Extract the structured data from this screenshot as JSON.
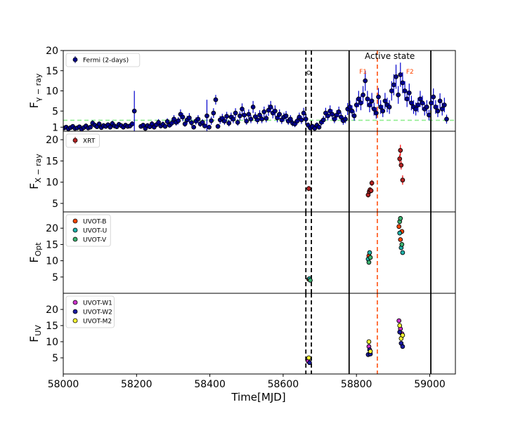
{
  "chart_data": {
    "type": "scatter",
    "shared_x": {
      "label": "Time[MJD]",
      "range": [
        58000,
        59070
      ],
      "ticks": [
        58000,
        58200,
        58400,
        58600,
        58800,
        59000
      ]
    },
    "markers": {
      "dashed_black": [
        58662,
        58677
      ],
      "solid_black": [
        58780,
        59003
      ],
      "dashed_red": [
        58857
      ]
    },
    "annotations": {
      "active_state": "Active state",
      "f1": "F1",
      "f2": "F2"
    },
    "colors": {
      "fermi": "#00008b",
      "fermi_err": "#0000cd",
      "xrt": "#b22222",
      "xrt_err": "#ff0000",
      "uvot_b": "#ff4500",
      "uvot_u": "#20b2aa",
      "uvot_v": "#3cb371",
      "uvot_w1": "#cc33cc",
      "uvot_w2": "#1a1aa0",
      "uvot_m2": "#ffff33",
      "threshold": "#90ee90",
      "flare_line": "#ff4500"
    },
    "panels": [
      {
        "id": "gamma",
        "ylabel_main": "F",
        "ylabel_sub": "γ − ray",
        "ylim": [
          0,
          20
        ],
        "yticks": [
          1,
          5,
          10,
          15,
          20
        ],
        "threshold": 2.7,
        "series": [
          {
            "name": "Fermi (2-days)",
            "color_key": "fermi",
            "style": "errorbar",
            "x": [
              58002,
              58008,
              58014,
              58020,
              58026,
              58032,
              58038,
              58044,
              58050,
              58056,
              58062,
              58068,
              58074,
              58080,
              58086,
              58092,
              58098,
              58104,
              58110,
              58116,
              58122,
              58128,
              58134,
              58140,
              58146,
              58152,
              58158,
              58164,
              58170,
              58176,
              58182,
              58188,
              58194,
              58212,
              58218,
              58224,
              58230,
              58236,
              58242,
              58248,
              58254,
              58260,
              58266,
              58272,
              58278,
              58284,
              58290,
              58296,
              58302,
              58308,
              58314,
              58320,
              58326,
              58332,
              58338,
              58344,
              58350,
              58356,
              58362,
              58368,
              58374,
              58380,
              58386,
              58392,
              58398,
              58404,
              58410,
              58416,
              58422,
              58428,
              58434,
              58440,
              58446,
              58452,
              58458,
              58464,
              58470,
              58476,
              58482,
              58488,
              58494,
              58500,
              58506,
              58512,
              58518,
              58524,
              58530,
              58536,
              58542,
              58548,
              58554,
              58560,
              58566,
              58572,
              58578,
              58584,
              58590,
              58596,
              58602,
              58608,
              58614,
              58620,
              58626,
              58632,
              58638,
              58644,
              58650,
              58656,
              58662,
              58668,
              58674,
              58680,
              58686,
              58692,
              58698,
              58704,
              58710,
              58716,
              58722,
              58728,
              58734,
              58740,
              58746,
              58752,
              58758,
              58764,
              58770,
              58776,
              58782,
              58788,
              58794,
              58800,
              58806,
              58812,
              58818,
              58824,
              58830,
              58836,
              58842,
              58848,
              58854,
              58860,
              58866,
              58872,
              58878,
              58884,
              58890,
              58896,
              58902,
              58908,
              58914,
              58920,
              58926,
              58932,
              58938,
              58944,
              58950,
              58956,
              58962,
              58968,
              58974,
              58980,
              58986,
              58992,
              58998,
              59004,
              59010,
              59016,
              59022,
              59028,
              59034,
              59040,
              59046
            ],
            "y": [
              0.8,
              1.0,
              0.6,
              0.9,
              1.2,
              0.7,
              0.8,
              1.1,
              0.5,
              0.9,
              1.3,
              0.8,
              1.0,
              2.0,
              1.5,
              1.1,
              1.8,
              0.9,
              1.4,
              1.2,
              1.6,
              1.0,
              1.9,
              1.3,
              1.1,
              1.7,
              1.4,
              1.0,
              1.5,
              1.2,
              1.3,
              1.8,
              5.0,
              1.2,
              1.5,
              0.7,
              1.4,
              1.1,
              1.8,
              1.0,
              1.6,
              2.2,
              1.3,
              1.7,
              1.2,
              2.4,
              1.5,
              2.0,
              3.0,
              2.2,
              2.6,
              4.2,
              3.5,
              1.8,
              2.8,
              3.3,
              2.1,
              1.0,
              2.5,
              3.0,
              1.8,
              2.2,
              1.3,
              3.8,
              1.0,
              2.6,
              4.5,
              7.8,
              1.2,
              2.8,
              3.2,
              2.5,
              3.7,
              2.0,
              3.5,
              3.0,
              4.5,
              2.2,
              3.8,
              5.5,
              4.0,
              2.5,
              4.2,
              3.0,
              6.0,
              3.6,
              2.8,
              4.0,
              3.0,
              4.8,
              3.2,
              5.2,
              6.0,
              4.5,
              5.0,
              3.3,
              4.2,
              2.8,
              3.5,
              3.8,
              2.5,
              3.0,
              2.0,
              1.8,
              2.5,
              3.5,
              2.8,
              4.5,
              3.0,
              1.5,
              0.8,
              1.2,
              0.7,
              1.5,
              1.0,
              2.2,
              2.8,
              4.5,
              3.8,
              5.0,
              4.2,
              3.0,
              4.0,
              4.8,
              3.5,
              2.6,
              3.0,
              5.5,
              6.0,
              5.0,
              3.8,
              6.5,
              8.0,
              7.0,
              9.0,
              12.5,
              8.0,
              6.5,
              7.5,
              5.5,
              4.5,
              8.5,
              6.0,
              5.0,
              7.5,
              6.5,
              6.0,
              10.0,
              11.5,
              13.5,
              9.0,
              14.0,
              12.0,
              10.0,
              8.0,
              9.5,
              7.0,
              6.0,
              5.5,
              6.5,
              8.0,
              7.0,
              5.5,
              6.0,
              4.0,
              7.0,
              8.5,
              6.0,
              5.0,
              7.5,
              5.5,
              6.5,
              3.0
            ],
            "err": [
              0.5,
              0.5,
              0.4,
              0.5,
              0.5,
              0.4,
              0.5,
              0.5,
              0.4,
              0.5,
              0.6,
              0.5,
              0.5,
              0.7,
              0.6,
              0.5,
              0.6,
              0.5,
              0.6,
              0.5,
              0.6,
              0.5,
              0.7,
              0.6,
              0.5,
              0.6,
              0.6,
              0.5,
              0.6,
              0.5,
              0.6,
              0.7,
              5.0,
              0.5,
              0.6,
              0.5,
              0.6,
              0.5,
              0.7,
              0.5,
              0.6,
              0.8,
              0.6,
              0.7,
              0.5,
              0.8,
              0.6,
              0.8,
              1.0,
              0.8,
              0.9,
              1.2,
              1.0,
              0.7,
              1.0,
              1.2,
              0.8,
              0.5,
              0.9,
              1.0,
              0.7,
              0.8,
              0.6,
              4.0,
              0.6,
              1.0,
              1.2,
              1.2,
              0.6,
              1.0,
              1.1,
              0.9,
              1.1,
              0.8,
              1.1,
              1.0,
              1.2,
              0.8,
              1.1,
              1.4,
              1.2,
              0.9,
              1.2,
              1.0,
              1.5,
              1.1,
              1.0,
              1.2,
              1.0,
              1.3,
              1.0,
              1.4,
              1.5,
              1.3,
              1.4,
              1.1,
              1.2,
              1.0,
              1.1,
              1.2,
              0.9,
              1.0,
              0.8,
              0.8,
              0.9,
              1.1,
              1.0,
              1.3,
              1.0,
              0.7,
              0.5,
              0.6,
              0.5,
              0.7,
              0.6,
              0.8,
              1.0,
              1.3,
              1.1,
              1.4,
              1.2,
              1.0,
              1.2,
              1.3,
              1.1,
              1.0,
              1.0,
              1.5,
              1.6,
              1.4,
              1.2,
              1.7,
              2.0,
              1.8,
              2.2,
              2.5,
              2.0,
              1.8,
              2.0,
              1.6,
              1.4,
              2.2,
              1.7,
              1.5,
              2.0,
              1.8,
              1.7,
              2.4,
              2.6,
              3.0,
              2.2,
              3.0,
              2.6,
              2.4,
              2.0,
              2.3,
              1.8,
              1.7,
              1.6,
              1.8,
              2.0,
              1.8,
              1.6,
              1.7,
              1.3,
              1.8,
              2.1,
              1.7,
              1.5,
              1.9,
              1.6,
              1.8,
              1.1
            ]
          },
          {
            "name": "",
            "color_key": "fermi",
            "style": "open-circle",
            "x": [
              58670
            ],
            "y": [
              14.5
            ],
            "err": [
              0
            ]
          }
        ]
      },
      {
        "id": "xray",
        "ylabel_main": "F",
        "ylabel_sub": "X − ray",
        "ylim": [
          3,
          22
        ],
        "yticks": [
          5,
          10,
          15,
          20
        ],
        "series": [
          {
            "name": "XRT",
            "color_key": "xrt",
            "style": "errorbar",
            "x": [
              58670,
              58832,
              58835,
              58837,
              58840,
              58842,
              58918,
              58920,
              58922,
              58926
            ],
            "y": [
              8.5,
              7.0,
              7.8,
              8.2,
              8.0,
              9.8,
              15.5,
              17.5,
              14.0,
              10.5
            ],
            "err": [
              0.6,
              0.6,
              0.6,
              0.6,
              0.6,
              0.7,
              1.0,
              1.3,
              1.0,
              1.1
            ]
          }
        ]
      },
      {
        "id": "opt",
        "ylabel_main": "F",
        "ylabel_sub": "Opt",
        "ylim": [
          0,
          25
        ],
        "yticks": [
          5,
          10,
          15,
          20
        ],
        "series": [
          {
            "name": "UVOT-B",
            "color_key": "uvot_b",
            "style": "marker",
            "x": [
              58670,
              58834,
              58916,
              58920,
              58924
            ],
            "y": [
              4.3,
              11.5,
              20.5,
              16.5,
              19.0
            ],
            "err": [
              0,
              0,
              0,
              0,
              0
            ]
          },
          {
            "name": "UVOT-U",
            "color_key": "uvot_u",
            "style": "marker",
            "x": [
              58672,
              58832,
              58836,
              58918,
              58922,
              58926
            ],
            "y": [
              4.5,
              10.5,
              12.5,
              18.5,
              14.0,
              12.5
            ],
            "err": [
              0,
              0,
              0,
              0,
              0,
              0
            ]
          },
          {
            "name": "UVOT-V",
            "color_key": "uvot_v",
            "style": "marker",
            "x": [
              58674,
              58834,
              58838,
              58918,
              58920,
              58924
            ],
            "y": [
              4.0,
              9.5,
              11.0,
              22.0,
              23.0,
              15.0
            ],
            "err": [
              0,
              0,
              0,
              0,
              0,
              0
            ]
          }
        ]
      },
      {
        "id": "uv",
        "ylabel_main": "F",
        "ylabel_sub": "UV",
        "ylim": [
          0,
          25
        ],
        "yticks": [
          5,
          10,
          15,
          20
        ],
        "series": [
          {
            "name": "UVOT-W1",
            "color_key": "uvot_w1",
            "style": "marker",
            "x": [
              58668,
              58834,
              58916,
              58920,
              58924
            ],
            "y": [
              4.0,
              8.5,
              16.5,
              14.0,
              12.5
            ],
            "err": [
              0,
              0,
              0,
              0,
              0
            ]
          },
          {
            "name": "UVOT-W2",
            "color_key": "uvot_w2",
            "style": "marker",
            "x": [
              58672,
              58832,
              58836,
              58838,
              58918,
              58922,
              58926
            ],
            "y": [
              3.5,
              6.0,
              7.5,
              6.2,
              13.0,
              9.5,
              8.5
            ],
            "err": [
              0,
              0,
              0,
              0,
              0,
              0,
              0
            ]
          },
          {
            "name": "UVOT-M2",
            "color_key": "uvot_m2",
            "style": "marker",
            "x": [
              58670,
              58834,
              58838,
              58918,
              58922,
              58926
            ],
            "y": [
              5.0,
              10.0,
              7.0,
              15.0,
              11.0,
              12.0
            ],
            "err": [
              0,
              0,
              0,
              0,
              0,
              0
            ]
          }
        ]
      }
    ]
  }
}
